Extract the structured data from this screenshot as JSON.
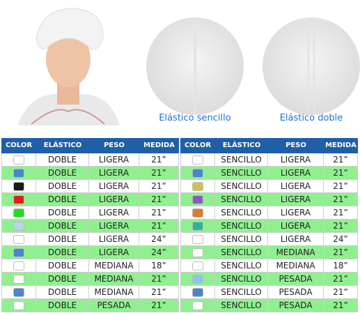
{
  "labels": [
    "Elástico sencillo",
    "Elástico doble"
  ],
  "tables": [
    {
      "header": [
        "COLOR",
        "ELÁSTICO",
        "PESO",
        "MEDIDA"
      ],
      "rows": [
        {
          "color": "#ffffff",
          "cells": [
            "DOBLE",
            "LIGERA",
            "21”"
          ]
        },
        {
          "color": "#4a86c8",
          "cells": [
            "DOBLE",
            "LIGERA",
            "21”"
          ]
        },
        {
          "color": "#1a1a1a",
          "cells": [
            "DOBLE",
            "LIGERA",
            "21”"
          ]
        },
        {
          "color": "#e02020",
          "cells": [
            "DOBLE",
            "LIGERA",
            "21”"
          ]
        },
        {
          "color": "#22dd22",
          "cells": [
            "DOBLE",
            "LIGERA",
            "21”"
          ]
        },
        {
          "color": "#b8d4ee",
          "cells": [
            "DOBLE",
            "LIGERA",
            "21”"
          ]
        },
        {
          "color": "#ffffff",
          "cells": [
            "DOBLE",
            "LIGERA",
            "24”"
          ]
        },
        {
          "color": "#4a86c8",
          "cells": [
            "DOBLE",
            "LIGERA",
            "24”"
          ]
        },
        {
          "color": "#ffffff",
          "cells": [
            "DOBLE",
            "MEDIANA",
            "18”"
          ]
        },
        {
          "color": "#ffffff",
          "cells": [
            "DOBLE",
            "MEDIANA",
            "21”"
          ]
        },
        {
          "color": "#4a86c8",
          "cells": [
            "DOBLE",
            "MEDIANA",
            "21”"
          ]
        },
        {
          "color": "#ffffff",
          "cells": [
            "DOBLE",
            "PESADA",
            "21”"
          ]
        }
      ]
    },
    {
      "header": [
        "COLOR",
        "ELÁSTICO",
        "PESO",
        "MEDIDA"
      ],
      "rows": [
        {
          "color": "#ffffff",
          "cells": [
            "SENCILLO",
            "LIGERA",
            "21”"
          ]
        },
        {
          "color": "#4a86c8",
          "cells": [
            "SENCILLO",
            "LIGERA",
            "21”"
          ]
        },
        {
          "color": "#d4c050",
          "cells": [
            "SENCILLO",
            "LIGERA",
            "21”"
          ]
        },
        {
          "color": "#8a5cc0",
          "cells": [
            "SENCILLO",
            "LIGERA",
            "21”"
          ]
        },
        {
          "color": "#e07a2a",
          "cells": [
            "SENCILLO",
            "LIGERA",
            "21”"
          ]
        },
        {
          "color": "#2ab59a",
          "cells": [
            "SENCILLO",
            "LIGERA",
            "21”"
          ]
        },
        {
          "color": "#ffffff",
          "cells": [
            "SENCILLO",
            "LIGERA",
            "24”"
          ]
        },
        {
          "color": "#ffffff",
          "cells": [
            "SENCILLO",
            "MEDIANA",
            "21”"
          ]
        },
        {
          "color": "#ffffff",
          "cells": [
            "SENCILLO",
            "MEDIANA",
            "18”"
          ]
        },
        {
          "color": "#8fc3ea",
          "cells": [
            "SENCILLO",
            "PESADA",
            "21”"
          ]
        },
        {
          "color": "#4a86c8",
          "cells": [
            "SENCILLO",
            "PESADA",
            "21”"
          ]
        },
        {
          "color": "#ffffff",
          "cells": [
            "SENCILLO",
            "PESADA",
            "21”"
          ]
        }
      ]
    }
  ]
}
